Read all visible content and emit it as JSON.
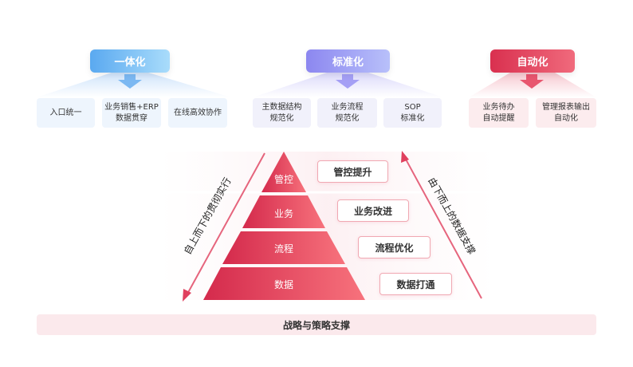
{
  "groups": [
    {
      "title": "一体化",
      "color": "#5aa9f0",
      "items": [
        "入口统一",
        "业务销售+ERP\n数据贯穿",
        "在线高效协作"
      ]
    },
    {
      "title": "标准化",
      "color": "#8c87f0",
      "items": [
        "主数据结构\n规范化",
        "业务流程\n规范化",
        "SOP\n标准化"
      ]
    },
    {
      "title": "自动化",
      "color": "#e0405e",
      "items": [
        "业务待办\n自动提醒",
        "管理报表输出\n自动化"
      ]
    }
  ],
  "pyramid": {
    "layers": [
      "管控",
      "业务",
      "流程",
      "数据"
    ],
    "labels": [
      "管控提升",
      "业务改进",
      "流程优化",
      "数据打通"
    ],
    "left_arrow": "自上而下的贯彻实行",
    "right_arrow": "由下而上的数据支撑",
    "color": "#d9304f"
  },
  "foundation": "战略与策略支撑"
}
